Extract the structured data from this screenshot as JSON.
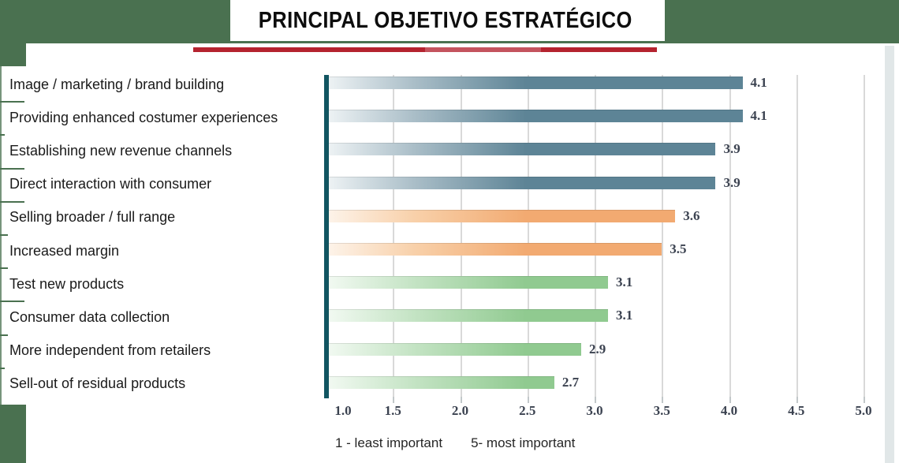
{
  "title": "PRINCIPAL OBJETIVO ESTRATÉGICO",
  "footnote": {
    "left": "1 - least important",
    "right": "5- most important"
  },
  "colors": {
    "slide_green": "#4a7150",
    "accent_red": "#b5232f",
    "accent_red_light": "#c4545e",
    "axis_teal": "#115561",
    "gridline": "#d9d9d9",
    "tick": "#c2c8ca",
    "value_text": "#3b4250",
    "label_text": "#1a1a1a",
    "right_strip": "#e1e7e8"
  },
  "bar_palette": {
    "blue": {
      "full": "#5d8496",
      "mid": "#a9bdc7",
      "light": "#edf2f4"
    },
    "orange": {
      "full": "#f2aa71",
      "mid": "#f8d0a9",
      "light": "#fdf3e9"
    },
    "green": {
      "full": "#90ca90",
      "mid": "#c3e3c3",
      "light": "#f1f9f1"
    }
  },
  "chart_data": {
    "type": "bar",
    "orientation": "horizontal",
    "title": "PRINCIPAL OBJETIVO ESTRATÉGICO",
    "categories": [
      "Image / marketing / brand building",
      "Providing enhanced costumer experiences",
      "Establishing new revenue channels",
      "Direct interaction with consumer",
      "Selling broader / full range",
      "Increased margin",
      "Test new products",
      "Consumer data collection",
      "More independent from retailers",
      "Sell-out of residual products"
    ],
    "values": [
      4.1,
      4.1,
      3.9,
      3.9,
      3.6,
      3.5,
      3.1,
      3.1,
      2.9,
      2.7
    ],
    "bar_color_groups": [
      "blue",
      "blue",
      "blue",
      "blue",
      "orange",
      "orange",
      "green",
      "green",
      "green",
      "green"
    ],
    "xlim": [
      1.0,
      5.0
    ],
    "xticks": [
      1.0,
      1.5,
      2.0,
      2.5,
      3.0,
      3.5,
      4.0,
      4.5,
      5.0
    ],
    "grid": true,
    "value_labels": true,
    "legend": false,
    "scale_note": "1 - least important   5- most important"
  }
}
